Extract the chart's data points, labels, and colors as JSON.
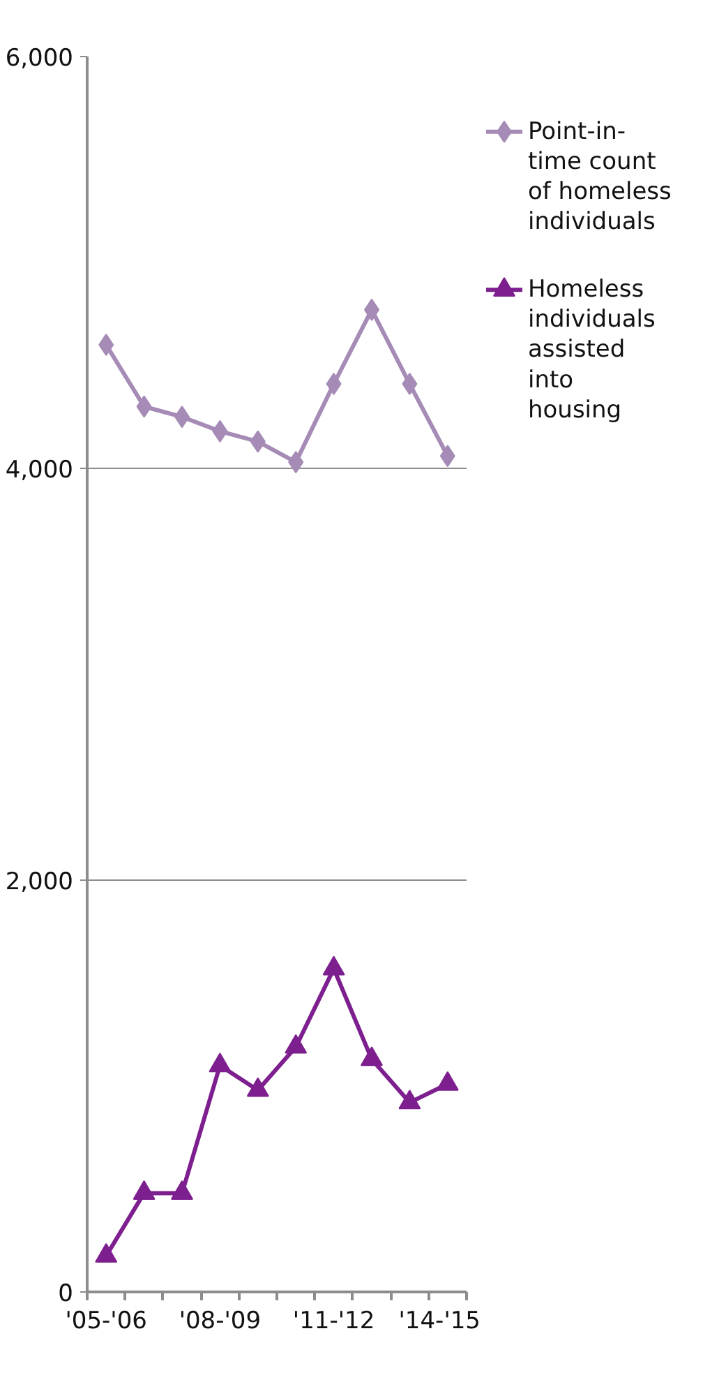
{
  "chart_data": {
    "type": "line",
    "categories": [
      "'05-'06",
      null,
      null,
      "'08-'09",
      null,
      null,
      "'11-'12",
      null,
      null,
      "'14-'15"
    ],
    "series": [
      {
        "name": "Point-in-time count of homeless individuals",
        "color": "#a58bb6",
        "marker": "diamond",
        "values": [
          4600,
          4300,
          4250,
          4180,
          4130,
          4030,
          4410,
          4770,
          4410,
          4060
        ]
      },
      {
        "name": "Homeless individuals assisted into housing",
        "color": "#7d1f8e",
        "marker": "triangle",
        "values": [
          175,
          480,
          480,
          1100,
          980,
          1190,
          1570,
          1130,
          920,
          1010
        ]
      }
    ],
    "ylim": [
      0,
      6000
    ],
    "yticks": [
      0,
      {
        "value": 2000,
        "label": "2,000"
      },
      {
        "value": 4000,
        "label": "4,000"
      },
      {
        "value": 6000,
        "label": "6,000"
      }
    ],
    "grid": "y",
    "legend": "right"
  }
}
